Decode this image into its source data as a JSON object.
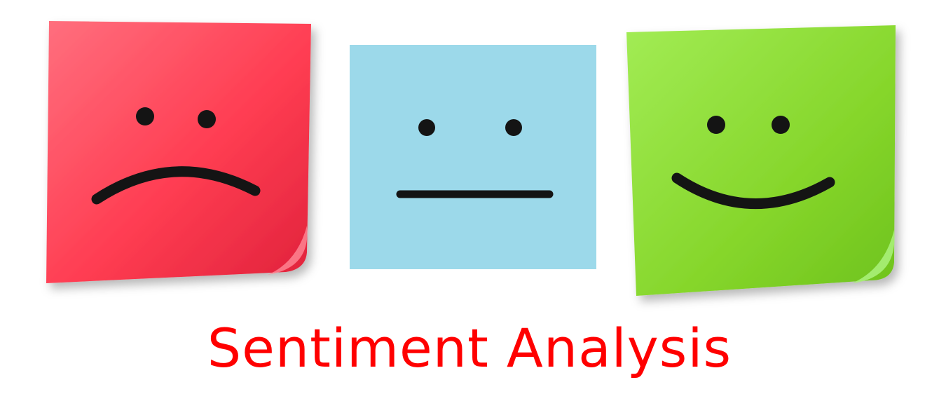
{
  "title": {
    "text": "Sentiment Analysis",
    "color": "#ff0000"
  },
  "notes": [
    {
      "sentiment": "negative",
      "face": "sad-face-icon",
      "color_main": "#ff3d52",
      "color_highlight": "#ff6f7e",
      "color_edge": "#e0223b"
    },
    {
      "sentiment": "neutral",
      "face": "neutral-face-icon",
      "color_main": "#9cd9ea"
    },
    {
      "sentiment": "positive",
      "face": "happy-face-icon",
      "color_main": "#86d62b",
      "color_highlight": "#a2ec55",
      "color_edge": "#6ec21d"
    }
  ],
  "ink_color": "#141414"
}
